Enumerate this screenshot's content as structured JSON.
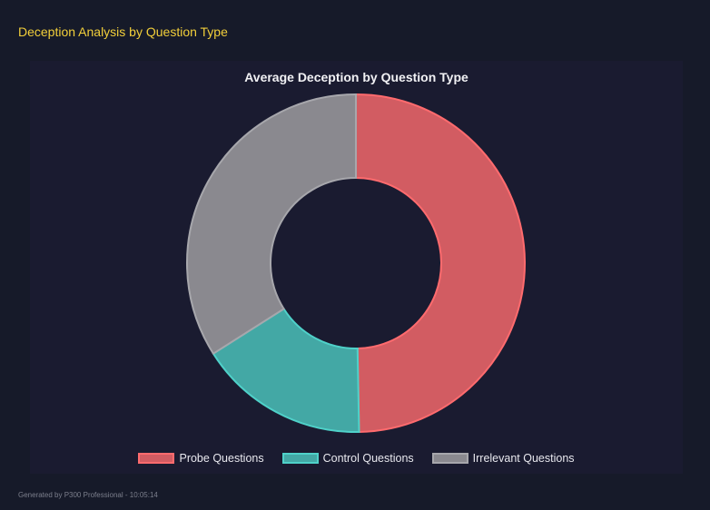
{
  "heading": "Deception Analysis by Question Type",
  "footer": "Generated by P300 Professional - 10:05:14",
  "chart_data": {
    "type": "pie",
    "variant": "doughnut",
    "title": "Average Deception by Question Type",
    "categories": [
      "Probe Questions",
      "Control Questions",
      "Irrelevant Questions"
    ],
    "values": [
      49.7,
      16.3,
      34.0
    ],
    "colors": [
      "#d25c62",
      "#43a8a5",
      "#8a898f"
    ],
    "border_colors": [
      "#ff6b6e",
      "#4fd1c9",
      "#a7a7ac"
    ],
    "legend": "bottom"
  }
}
